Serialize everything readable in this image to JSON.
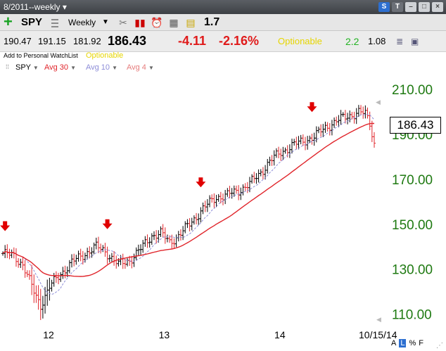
{
  "window": {
    "title": "8/2011--weekly ▾",
    "icons": [
      "s-plus-icon",
      "tv-icon",
      "minimize-icon",
      "maximize-icon",
      "close-icon"
    ],
    "icon_labels": {
      "s": "S",
      "t": "T",
      "min": "–",
      "max": "□",
      "close": "×"
    }
  },
  "toolbar": {
    "add_icon": "+",
    "symbol": "SPY",
    "period": "Weekly",
    "period_arrow": "▼",
    "icons": {
      "scissors": "✂",
      "bars": "▮▮",
      "clock": "⏰",
      "grid": "▦",
      "note": "▤"
    },
    "beta": "1.7"
  },
  "quote": {
    "open": "190.47",
    "high": "191.15",
    "low": "181.92",
    "last": "186.43",
    "change": "-4.11",
    "change_pct": "-2.16%",
    "optionable": "Optionable",
    "green_val": "2.2",
    "val2": "1.08",
    "db_icon": "≣",
    "save_icon": "▣",
    "watchlist_label": "Add to Personal WatchList",
    "optionable_label": "Optionable"
  },
  "legend": {
    "grip": "⁞⁞",
    "spy": "SPY",
    "avg30": "Avg 30",
    "avg10": "Avg 10",
    "avg4": "Avg 4",
    "arrow": "▼"
  },
  "colors": {
    "up_bar": "#000000",
    "down_bar": "#e0242a",
    "avg30": "#e0242a",
    "avg10": "#8c8cd8",
    "axis_green": "#1f7a12",
    "arrow_red": "#e00000"
  },
  "chart_data": {
    "type": "ohlc",
    "title": "",
    "ylim": [
      103,
      216
    ],
    "y_ticks": [
      {
        "value": 210,
        "label": "210.00"
      },
      {
        "value": 190,
        "label": "190.00"
      },
      {
        "value": 170,
        "label": "170.00"
      },
      {
        "value": 150,
        "label": "150.00"
      },
      {
        "value": 130,
        "label": "130.00"
      },
      {
        "value": 110,
        "label": "110.00"
      }
    ],
    "x_ticks": [
      {
        "week": 20,
        "label": "12"
      },
      {
        "week": 72,
        "label": "13"
      },
      {
        "week": 124,
        "label": "14"
      },
      {
        "week": 167,
        "label": "10/15/14"
      }
    ],
    "n_weeks": 168,
    "anchors": [
      [
        0,
        137
      ],
      [
        5,
        136
      ],
      [
        9,
        132
      ],
      [
        14,
        120
      ],
      [
        17,
        114
      ],
      [
        21,
        122
      ],
      [
        26,
        128
      ],
      [
        31,
        133
      ],
      [
        37,
        137
      ],
      [
        42,
        140
      ],
      [
        46,
        138
      ],
      [
        52,
        132
      ],
      [
        57,
        134
      ],
      [
        62,
        139
      ],
      [
        67,
        145
      ],
      [
        71,
        146
      ],
      [
        75,
        142
      ],
      [
        79,
        145
      ],
      [
        84,
        150
      ],
      [
        90,
        157
      ],
      [
        96,
        162
      ],
      [
        101,
        163
      ],
      [
        106,
        165
      ],
      [
        111,
        168
      ],
      [
        115,
        172
      ],
      [
        120,
        178
      ],
      [
        125,
        182
      ],
      [
        130,
        185
      ],
      [
        135,
        187
      ],
      [
        140,
        189
      ],
      [
        145,
        193
      ],
      [
        150,
        196
      ],
      [
        155,
        198
      ],
      [
        160,
        200
      ],
      [
        163,
        199
      ],
      [
        165,
        195
      ],
      [
        167,
        186
      ]
    ],
    "last_price": "186.43",
    "red_arrows_weeks": [
      1,
      47,
      89,
      139
    ]
  },
  "bottom": {
    "a": "A",
    "l": "L",
    "pct": "%",
    "f": "F"
  }
}
